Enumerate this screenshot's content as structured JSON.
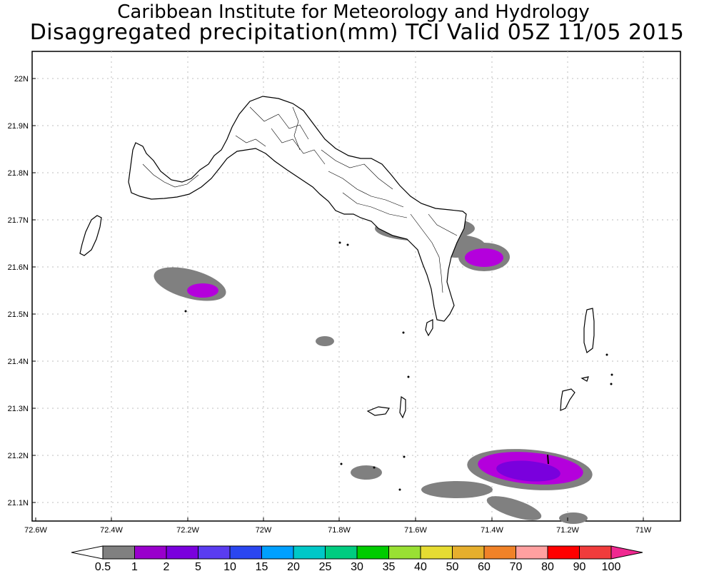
{
  "title": {
    "line1": "Caribbean Institute for Meteorology and Hydrology",
    "line2": "Disaggregated precipitation(mm) TCI Valid 05Z 11/05 2015"
  },
  "axes": {
    "lat_labels": [
      "22N",
      "21.9N",
      "21.8N",
      "21.7N",
      "21.6N",
      "21.5N",
      "21.4N",
      "21.3N",
      "21.2N",
      "21.1N"
    ],
    "lon_labels": [
      "72.6W",
      "72.4W",
      "72.2W",
      "72W",
      "71.8W",
      "71.6W",
      "71.4W",
      "71.2W",
      "71W"
    ]
  },
  "colorbar": {
    "levels": [
      "0.5",
      "1",
      "2",
      "5",
      "10",
      "15",
      "20",
      "25",
      "30",
      "35",
      "40",
      "50",
      "60",
      "70",
      "80",
      "90",
      "100"
    ],
    "colors": [
      "#808080",
      "#9900cc",
      "#7a00dd",
      "#5a3cf0",
      "#2a46f0",
      "#00a0ff",
      "#00c8c8",
      "#00cc80",
      "#00cc00",
      "#99e033",
      "#e6dc32",
      "#e6af2d",
      "#f08228",
      "#ffa0a0",
      "#ff0000",
      "#f03c3c"
    ],
    "under_color": "#ffffff",
    "over_color": "#f02890"
  },
  "legend": {
    "gray": "#808080",
    "light_purple": "#b400dc",
    "dark_purple": "#7a00dd"
  }
}
